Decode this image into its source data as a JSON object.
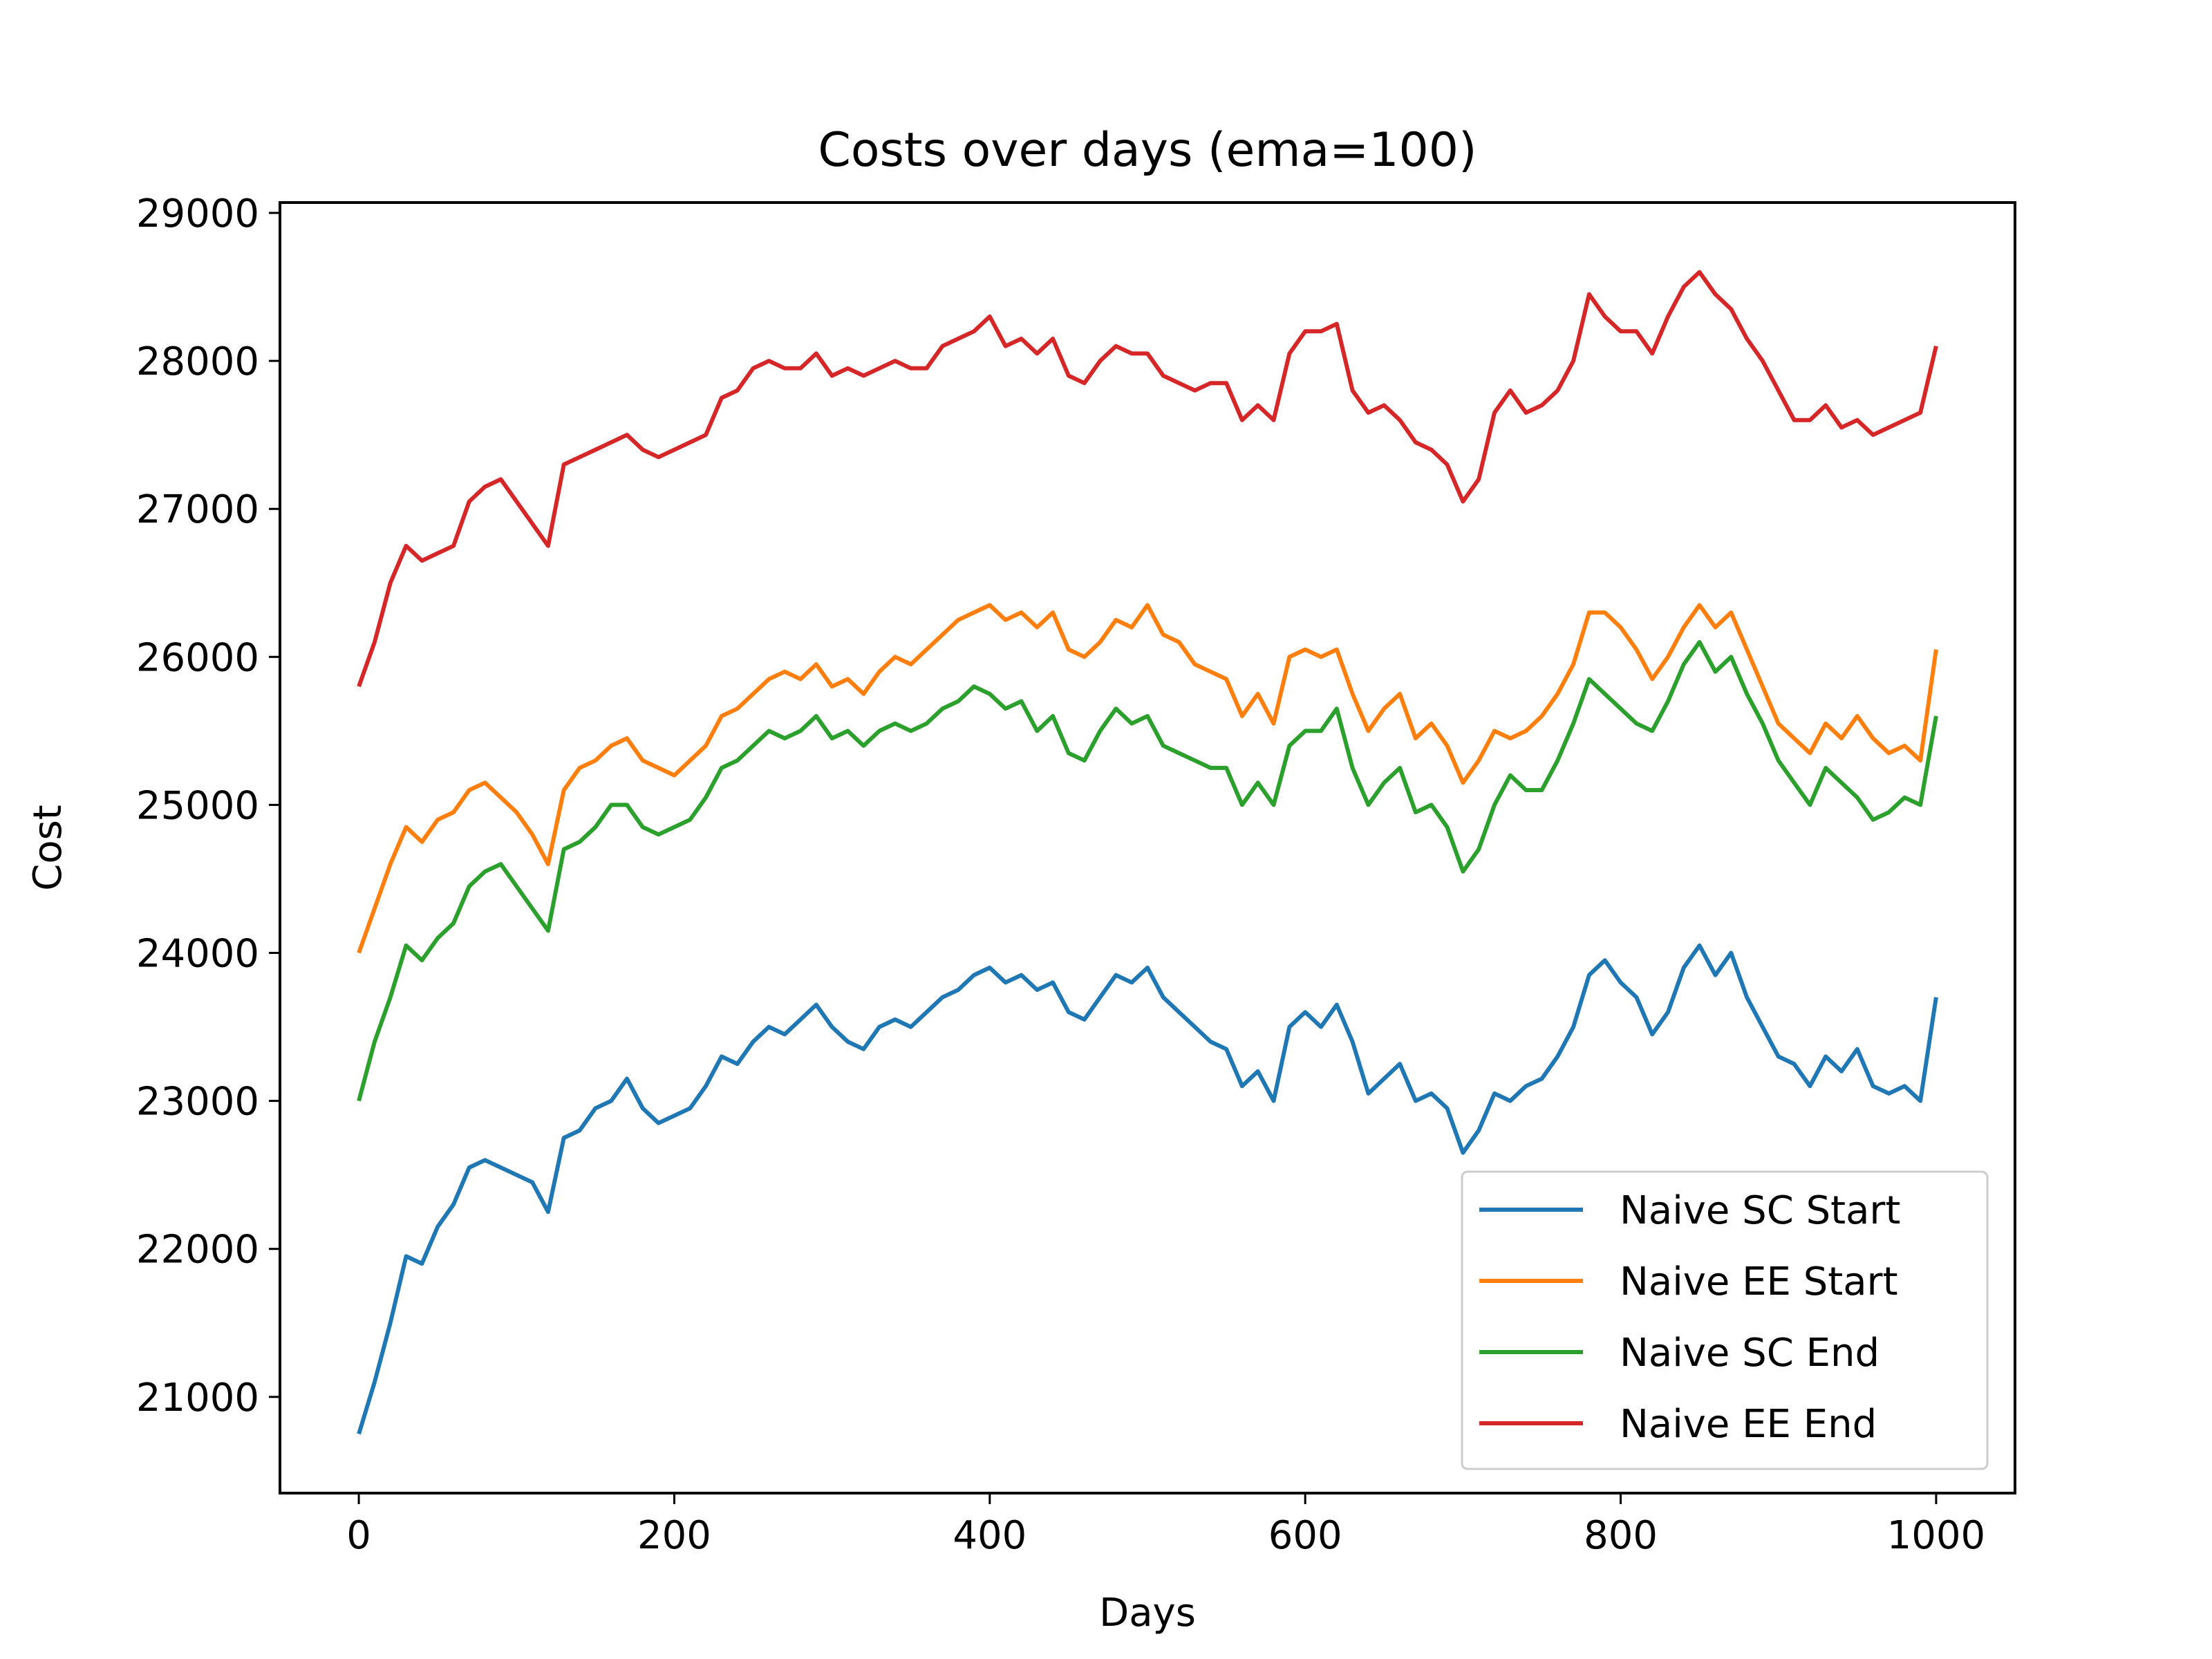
{
  "chart_data": {
    "type": "line",
    "title": "Costs over days (ema=100)",
    "xlabel": "Days",
    "ylabel": "Cost",
    "xlim": [
      -50,
      1050
    ],
    "ylim": [
      20350,
      29070
    ],
    "xticks": [
      0,
      200,
      400,
      600,
      800,
      1000
    ],
    "yticks": [
      21000,
      22000,
      23000,
      24000,
      25000,
      26000,
      27000,
      28000,
      29000
    ],
    "grid": false,
    "legend_position": "lower right",
    "series": [
      {
        "name": "Naive SC Start",
        "color": "#1f77b4",
        "x": [
          0,
          10,
          20,
          30,
          40,
          50,
          60,
          70,
          80,
          90,
          100,
          110,
          120,
          130,
          140,
          150,
          160,
          170,
          180,
          190,
          200,
          210,
          220,
          230,
          240,
          250,
          260,
          270,
          280,
          290,
          300,
          310,
          320,
          330,
          340,
          350,
          360,
          370,
          380,
          390,
          400,
          410,
          420,
          430,
          440,
          450,
          460,
          470,
          480,
          490,
          500,
          510,
          520,
          530,
          540,
          550,
          560,
          570,
          580,
          590,
          600,
          610,
          620,
          630,
          640,
          650,
          660,
          670,
          680,
          690,
          700,
          710,
          720,
          730,
          740,
          750,
          760,
          770,
          780,
          790,
          800,
          810,
          820,
          830,
          840,
          850,
          860,
          870,
          880,
          890,
          900,
          910,
          920,
          930,
          940,
          950,
          960,
          970,
          980,
          990,
          1000
        ],
        "values": [
          20750,
          21100,
          21500,
          21950,
          21900,
          22150,
          22300,
          22550,
          22600,
          22550,
          22500,
          22450,
          22250,
          22750,
          22800,
          22950,
          23000,
          23150,
          22950,
          22850,
          22900,
          22950,
          23100,
          23300,
          23250,
          23400,
          23500,
          23450,
          23550,
          23650,
          23500,
          23400,
          23350,
          23500,
          23550,
          23500,
          23600,
          23700,
          23750,
          23850,
          23900,
          23800,
          23850,
          23750,
          23800,
          23600,
          23550,
          23700,
          23850,
          23800,
          23900,
          23700,
          23600,
          23500,
          23400,
          23350,
          23100,
          23200,
          23000,
          23500,
          23600,
          23500,
          23650,
          23400,
          23050,
          23150,
          23250,
          23000,
          23050,
          22950,
          22650,
          22800,
          23050,
          23000,
          23100,
          23150,
          23300,
          23500,
          23850,
          23950,
          23800,
          23700,
          23450,
          23600,
          23900,
          24050,
          23850,
          24000,
          23700,
          23500,
          23300,
          23250,
          23100,
          23300,
          23200,
          23350,
          23100,
          23050,
          23100,
          23000,
          23700
        ]
      },
      {
        "name": "Naive EE Start",
        "color": "#ff7f0e",
        "x": [
          0,
          10,
          20,
          30,
          40,
          50,
          60,
          70,
          80,
          90,
          100,
          110,
          120,
          130,
          140,
          150,
          160,
          170,
          180,
          190,
          200,
          210,
          220,
          230,
          240,
          250,
          260,
          270,
          280,
          290,
          300,
          310,
          320,
          330,
          340,
          350,
          360,
          370,
          380,
          390,
          400,
          410,
          420,
          430,
          440,
          450,
          460,
          470,
          480,
          490,
          500,
          510,
          520,
          530,
          540,
          550,
          560,
          570,
          580,
          590,
          600,
          610,
          620,
          630,
          640,
          650,
          660,
          670,
          680,
          690,
          700,
          710,
          720,
          730,
          740,
          750,
          760,
          770,
          780,
          790,
          800,
          810,
          820,
          830,
          840,
          850,
          860,
          870,
          880,
          890,
          900,
          910,
          920,
          930,
          940,
          950,
          960,
          970,
          980,
          990,
          1000
        ],
        "values": [
          24000,
          24300,
          24600,
          24850,
          24750,
          24900,
          24950,
          25100,
          25150,
          25050,
          24950,
          24800,
          24600,
          25100,
          25250,
          25300,
          25400,
          25450,
          25300,
          25250,
          25200,
          25300,
          25400,
          25600,
          25650,
          25750,
          25850,
          25900,
          25850,
          25950,
          25800,
          25850,
          25750,
          25900,
          26000,
          25950,
          26050,
          26150,
          26250,
          26300,
          26350,
          26250,
          26300,
          26200,
          26300,
          26050,
          26000,
          26100,
          26250,
          26200,
          26350,
          26150,
          26100,
          25950,
          25900,
          25850,
          25600,
          25750,
          25550,
          26000,
          26050,
          26000,
          26050,
          25750,
          25500,
          25650,
          25750,
          25450,
          25550,
          25400,
          25150,
          25300,
          25500,
          25450,
          25500,
          25600,
          25750,
          25950,
          26300,
          26300,
          26200,
          26050,
          25850,
          26000,
          26200,
          26350,
          26200,
          26300,
          26050,
          25800,
          25550,
          25450,
          25350,
          25550,
          25450,
          25600,
          25450,
          25350,
          25400,
          25300,
          26050
        ]
      },
      {
        "name": "Naive SC End",
        "color": "#2ca02c",
        "x": [
          0,
          10,
          20,
          30,
          40,
          50,
          60,
          70,
          80,
          90,
          100,
          110,
          120,
          130,
          140,
          150,
          160,
          170,
          180,
          190,
          200,
          210,
          220,
          230,
          240,
          250,
          260,
          270,
          280,
          290,
          300,
          310,
          320,
          330,
          340,
          350,
          360,
          370,
          380,
          390,
          400,
          410,
          420,
          430,
          440,
          450,
          460,
          470,
          480,
          490,
          500,
          510,
          520,
          530,
          540,
          550,
          560,
          570,
          580,
          590,
          600,
          610,
          620,
          630,
          640,
          650,
          660,
          670,
          680,
          690,
          700,
          710,
          720,
          730,
          740,
          750,
          760,
          770,
          780,
          790,
          800,
          810,
          820,
          830,
          840,
          850,
          860,
          870,
          880,
          890,
          900,
          910,
          920,
          930,
          940,
          950,
          960,
          970,
          980,
          990,
          1000
        ],
        "values": [
          23000,
          23400,
          23700,
          24050,
          23950,
          24100,
          24200,
          24450,
          24550,
          24600,
          24450,
          24300,
          24150,
          24700,
          24750,
          24850,
          25000,
          25000,
          24850,
          24800,
          24850,
          24900,
          25050,
          25250,
          25300,
          25400,
          25500,
          25450,
          25500,
          25600,
          25450,
          25500,
          25400,
          25500,
          25550,
          25500,
          25550,
          25650,
          25700,
          25800,
          25750,
          25650,
          25700,
          25500,
          25600,
          25350,
          25300,
          25500,
          25650,
          25550,
          25600,
          25400,
          25350,
          25300,
          25250,
          25250,
          25000,
          25150,
          25000,
          25400,
          25500,
          25500,
          25650,
          25250,
          25000,
          25150,
          25250,
          24950,
          25000,
          24850,
          24550,
          24700,
          25000,
          25200,
          25100,
          25100,
          25300,
          25550,
          25850,
          25750,
          25650,
          25550,
          25500,
          25700,
          25950,
          26100,
          25900,
          26000,
          25750,
          25550,
          25300,
          25150,
          25000,
          25250,
          25150,
          25050,
          24900,
          24950,
          25050,
          25000,
          25600
        ]
      },
      {
        "name": "Naive EE End",
        "color": "#d62728",
        "x": [
          0,
          10,
          20,
          30,
          40,
          50,
          60,
          70,
          80,
          90,
          100,
          110,
          120,
          130,
          140,
          150,
          160,
          170,
          180,
          190,
          200,
          210,
          220,
          230,
          240,
          250,
          260,
          270,
          280,
          290,
          300,
          310,
          320,
          330,
          340,
          350,
          360,
          370,
          380,
          390,
          400,
          410,
          420,
          430,
          440,
          450,
          460,
          470,
          480,
          490,
          500,
          510,
          520,
          530,
          540,
          550,
          560,
          570,
          580,
          590,
          600,
          610,
          620,
          630,
          640,
          650,
          660,
          670,
          680,
          690,
          700,
          710,
          720,
          730,
          740,
          750,
          760,
          770,
          780,
          790,
          800,
          810,
          820,
          830,
          840,
          850,
          860,
          870,
          880,
          890,
          900,
          910,
          920,
          930,
          940,
          950,
          960,
          970,
          980,
          990,
          1000
        ],
        "values": [
          25800,
          26100,
          26500,
          26750,
          26650,
          26700,
          26750,
          27050,
          27150,
          27200,
          27050,
          26900,
          26750,
          27300,
          27350,
          27400,
          27450,
          27500,
          27400,
          27350,
          27400,
          27450,
          27500,
          27750,
          27800,
          27950,
          28000,
          27950,
          27950,
          28050,
          27900,
          27950,
          27900,
          27950,
          28000,
          27950,
          27950,
          28100,
          28150,
          28200,
          28300,
          28100,
          28150,
          28050,
          28150,
          27900,
          27850,
          28000,
          28100,
          28050,
          28050,
          27900,
          27850,
          27800,
          27850,
          27850,
          27600,
          27700,
          27600,
          28050,
          28200,
          28200,
          28250,
          27800,
          27650,
          27700,
          27600,
          27450,
          27400,
          27300,
          27050,
          27200,
          27650,
          27800,
          27650,
          27700,
          27800,
          28000,
          28450,
          28300,
          28200,
          28200,
          28050,
          28300,
          28500,
          28600,
          28450,
          28350,
          28150,
          28000,
          27800,
          27600,
          27600,
          27700,
          27550,
          27600,
          27500,
          27550,
          27600,
          27650,
          28100
        ]
      }
    ]
  }
}
